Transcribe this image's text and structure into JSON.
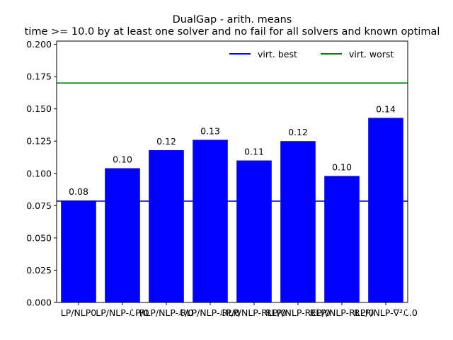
{
  "chart_data": {
    "type": "bar",
    "title": "DualGap - arith. means",
    "subtitle": "time >= 10.0 by at least one solver and no fail for all solvers and known optimal",
    "xlabel": "",
    "ylabel": "",
    "categories": [
      "LP/NLP0",
      "LP/NLP-ℒP/0",
      "RLP/NLP-ℒ/0",
      "RLP/NLP-ℒP/0",
      "RLP/NLP-RLP/0",
      "RLP/NLP-REP/0",
      "RLP/NLP-RLP/0",
      "RLP/NLP-∇²ℒ.0"
    ],
    "tick_labels_visible": [
      "LP/NLP0",
      "LP/NLP-ℒP/0",
      "RLP/NLP-ℒ/0",
      "RLP/NLP-ℒP/0",
      "RLP/NLP-RLP/0",
      "RLP/NLP-REP/0",
      "RLP/NLP-RLP/0",
      "RLP/NLP-∇²ℒ.0"
    ],
    "values": [
      0.079,
      0.104,
      0.118,
      0.126,
      0.11,
      0.125,
      0.098,
      0.143
    ],
    "data_labels": [
      "0.08",
      "0.10",
      "0.12",
      "0.13",
      "0.11",
      "0.12",
      "0.10",
      "0.14"
    ],
    "ylim": [
      0.0,
      0.2025
    ],
    "yticks": [
      "0.000",
      "0.025",
      "0.050",
      "0.075",
      "0.100",
      "0.125",
      "0.150",
      "0.175",
      "0.200"
    ],
    "ytick_values": [
      0.0,
      0.025,
      0.05,
      0.075,
      0.1,
      0.125,
      0.15,
      0.175,
      0.2
    ],
    "bar_color": "#0000ff",
    "reference_lines": [
      {
        "name": "virt. best",
        "value": 0.0785,
        "color": "#0000ff"
      },
      {
        "name": "virt. worst",
        "value": 0.17,
        "color": "#008000"
      }
    ],
    "legend_position": "top-right",
    "grid": false
  }
}
